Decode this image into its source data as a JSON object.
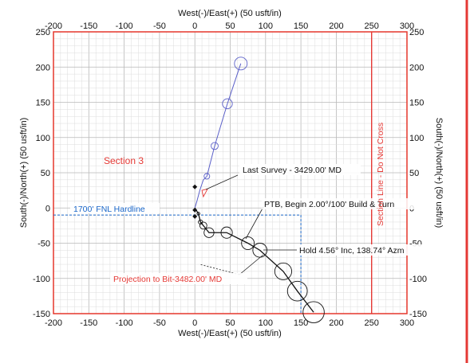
{
  "chart_data": {
    "type": "scatter",
    "x_title_top": "West(-)/East(+) (50 usft/in)",
    "x_title_bottom": "West(-)/East(+) (50 usft/in)",
    "y_title_left": "South(-)/North(+) (50 usft/in)",
    "y_title_right": "South(-)/North(+) (50 usft/in)",
    "xlim": [
      -200,
      300
    ],
    "ylim": [
      -150,
      250
    ],
    "x_ticks": [
      "-200",
      "-150",
      "-100",
      "-50",
      "0",
      "50",
      "100",
      "150",
      "200",
      "250",
      "300"
    ],
    "y_ticks": [
      "250",
      "200",
      "150",
      "100",
      "50",
      "0",
      "-50",
      "-100",
      "-150"
    ],
    "grid": true,
    "labels": {
      "section": "Section 3",
      "hardline": "1700' FNL Hardline",
      "section_line": "Section Line - Do Not Cross",
      "last_survey": "Last Survey - 3429.00' MD",
      "ptb": "PTB, Begin 2.00°/100' Build & Turn",
      "hold": "Hold 4.56° Inc, 138.74° Azm",
      "projection": "Projection to Bit-3482.00' MD"
    },
    "section_line_x": 250,
    "hardline_y": -10,
    "hardline_x_end": 150,
    "series": [
      {
        "x": [
          0,
          3,
          7,
          12,
          17,
          28,
          46,
          65
        ],
        "y": [
          0,
          10,
          25,
          40,
          45,
          88,
          148,
          205
        ],
        "r": [
          0,
          0,
          0,
          0,
          4,
          5,
          7,
          9
        ]
      },
      {
        "x": [
          0,
          5,
          8,
          12,
          20,
          45,
          75,
          92,
          125,
          145,
          168
        ],
        "y": [
          0,
          -8,
          -20,
          -25,
          -35,
          -35,
          -50,
          -60,
          -90,
          -118,
          -148
        ],
        "r": [
          0,
          2,
          3,
          5,
          7,
          8,
          9,
          10,
          12,
          14,
          15
        ]
      }
    ],
    "markers": [
      {
        "x": 0,
        "y": 30
      },
      {
        "x": 0,
        "y": -3
      },
      {
        "x": 0,
        "y": -12
      }
    ],
    "colors": {
      "frame": "#e5372c",
      "north_series": "#5a5fc8",
      "south_series": "#111111",
      "hardline": "#1a66c8",
      "section_label": "#e53935",
      "ptb_label": "#111111",
      "projection_label": "#e53935",
      "border_right": "#e53935"
    }
  }
}
